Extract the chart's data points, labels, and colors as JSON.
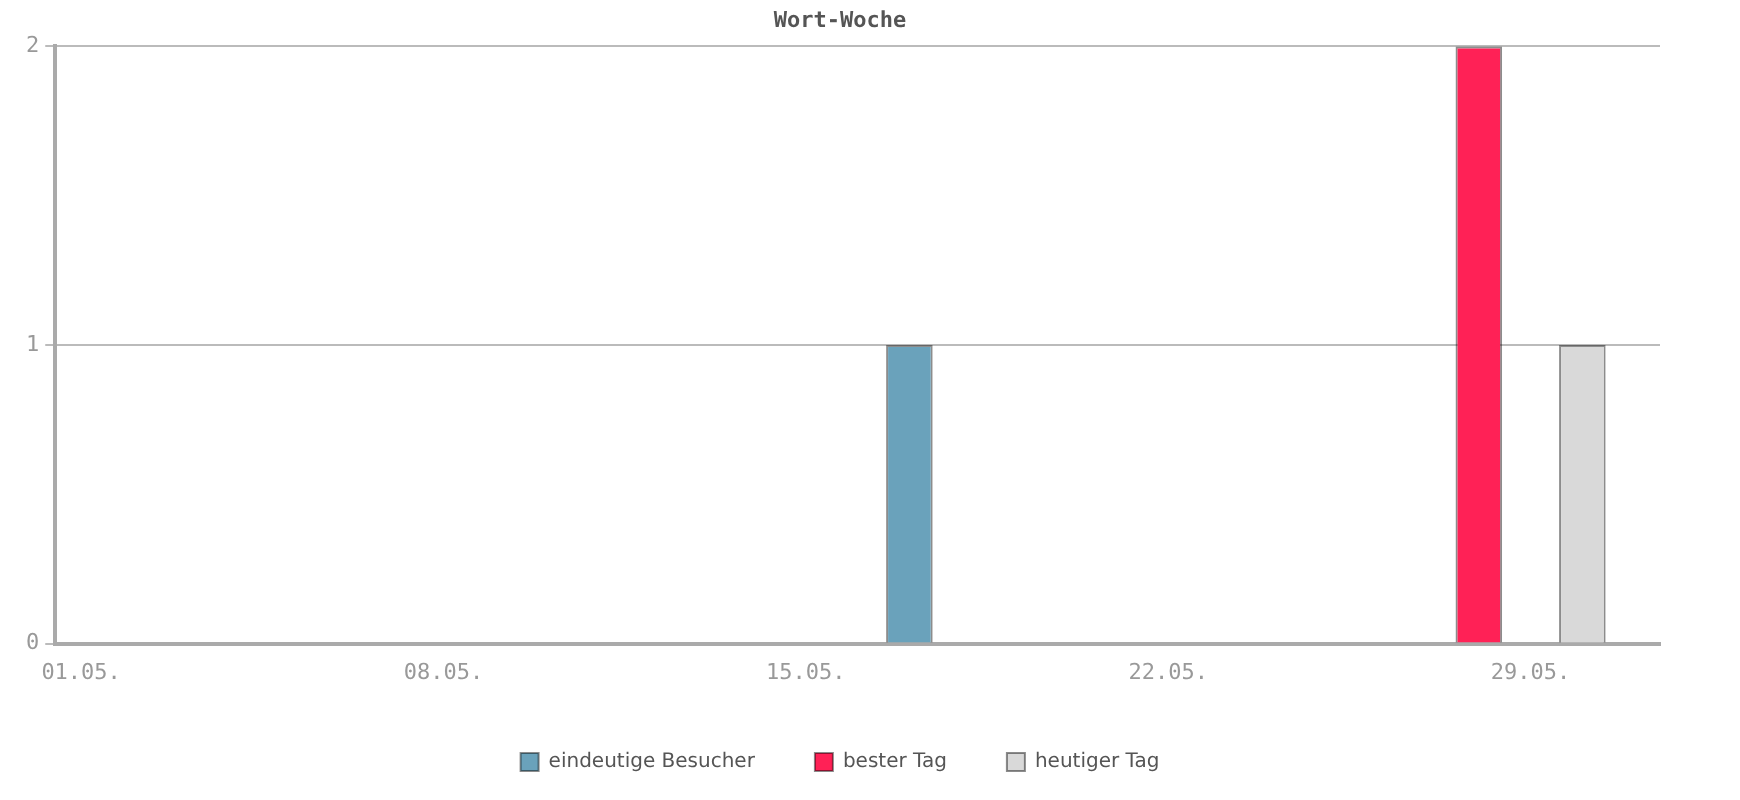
{
  "chart_data": {
    "type": "bar",
    "title": "Wort-Woche",
    "categories": [
      "01.05.",
      null,
      null,
      null,
      null,
      null,
      null,
      "08.05.",
      null,
      null,
      null,
      null,
      null,
      null,
      "15.05.",
      null,
      null,
      null,
      null,
      null,
      null,
      "22.05.",
      null,
      null,
      null,
      null,
      null,
      null,
      "29.05.",
      null,
      null
    ],
    "series": [
      {
        "name": "eindeutige Besucher",
        "color": "#6aa2bb",
        "values": [
          null,
          null,
          null,
          null,
          null,
          null,
          null,
          null,
          null,
          null,
          null,
          null,
          null,
          null,
          null,
          null,
          1,
          null,
          null,
          null,
          null,
          null,
          null,
          null,
          null,
          null,
          null,
          null,
          null,
          null,
          null
        ]
      },
      {
        "name": "bester Tag",
        "color": "#ff2156",
        "values": [
          null,
          null,
          null,
          null,
          null,
          null,
          null,
          null,
          null,
          null,
          null,
          null,
          null,
          null,
          null,
          null,
          null,
          null,
          null,
          null,
          null,
          null,
          null,
          null,
          null,
          null,
          null,
          2,
          null,
          null,
          null
        ]
      },
      {
        "name": "heutiger Tag",
        "color": "#d9d9d9",
        "values": [
          null,
          null,
          null,
          null,
          null,
          null,
          null,
          null,
          null,
          null,
          null,
          null,
          null,
          null,
          null,
          null,
          null,
          null,
          null,
          null,
          null,
          null,
          null,
          null,
          null,
          null,
          null,
          null,
          null,
          1,
          null
        ]
      }
    ],
    "ylim": [
      0,
      2
    ],
    "yticks": [
      0,
      1,
      2
    ],
    "grid": "y",
    "legend": "bottom"
  }
}
